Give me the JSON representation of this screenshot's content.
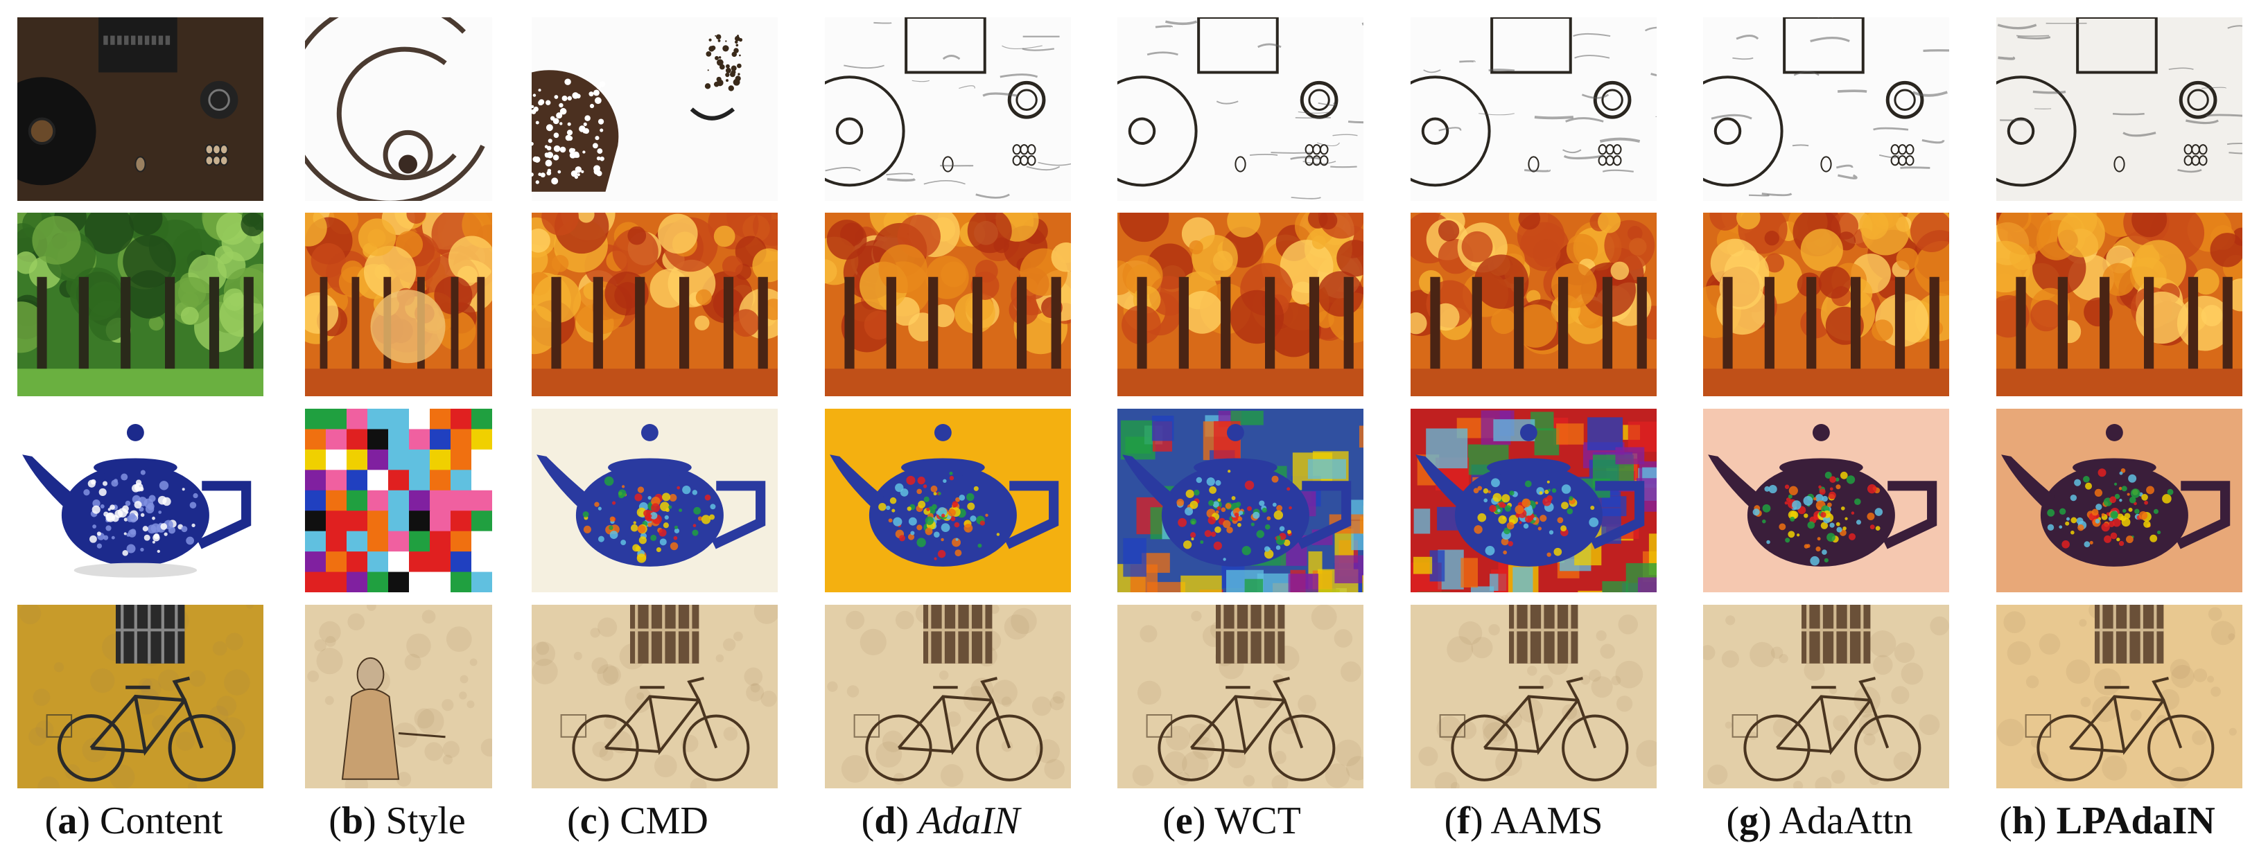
{
  "captions": [
    {
      "letter": "a",
      "label": "Content",
      "italic": false,
      "bold": false
    },
    {
      "letter": "b",
      "label": "Style",
      "italic": false,
      "bold": false
    },
    {
      "letter": "c",
      "label": "CMD",
      "italic": false,
      "bold": false
    },
    {
      "letter": "d",
      "label": "AdaIN",
      "italic": true,
      "bold": false
    },
    {
      "letter": "e",
      "label": "WCT",
      "italic": false,
      "bold": false
    },
    {
      "letter": "f",
      "label": "AAMS",
      "italic": false,
      "bold": false
    },
    {
      "letter": "g",
      "label": "AdaAttn",
      "italic": false,
      "bold": false
    },
    {
      "letter": "h",
      "label": "LPAdaIN",
      "italic": false,
      "bold": true
    }
  ],
  "rows": [
    {
      "subject": "desk-with-record-player",
      "palette": [
        "#3a2a1e",
        "#5b3f2a",
        "#151515",
        "#8b7a60"
      ]
    },
    {
      "subject": "forest-trees",
      "palette": [
        "#2f6a1f",
        "#6fa840",
        "#c9501a",
        "#f0a020"
      ]
    },
    {
      "subject": "teapot",
      "palette": [
        "#1c2a8c",
        "#ffffff",
        "#e5b020",
        "#f5c8b0"
      ]
    },
    {
      "subject": "bicycle-by-wall",
      "palette": [
        "#c89b2a",
        "#e3cfa8",
        "#4a3520",
        "#b09070"
      ]
    }
  ],
  "colors": {
    "background": "#ffffff",
    "text": "#111111"
  }
}
